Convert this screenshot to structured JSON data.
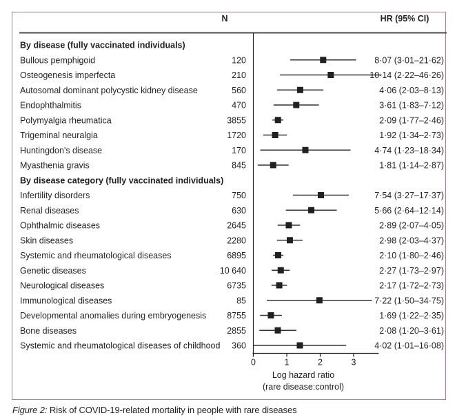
{
  "header": {
    "n_label": "N",
    "hr_label": "HR (95% CI)"
  },
  "caption": {
    "figure_label": "Figure 2:",
    "text": " Risk of COVID-19-related mortality in people with rare diseases"
  },
  "chart_data": {
    "type": "forest",
    "title": "Risk of COVID-19-related mortality in people with rare diseases",
    "xlabel": "Log hazard ratio",
    "xlabel_sub": "(rare disease:control)",
    "x_scale": "log hazard ratio (ln of HR)",
    "xlim": [
      0,
      3.75
    ],
    "xticks": [
      0,
      1,
      2,
      3
    ],
    "xtick_labels": [
      "0",
      "1",
      "2",
      "3"
    ],
    "columns": [
      "N",
      "HR (95% CI)"
    ],
    "groups": [
      {
        "heading": "By disease (fully vaccinated individuals)",
        "rows": [
          {
            "label": "Bullous pemphigoid",
            "n": "120",
            "hr": 8.07,
            "lo": 3.01,
            "hi": 21.62,
            "hr_text": "8·07 (3·01–21·62)"
          },
          {
            "label": "Osteogenesis imperfecta",
            "n": "210",
            "hr": 10.14,
            "lo": 2.22,
            "hi": 46.26,
            "hr_text": "10·14 (2·22–46·26)"
          },
          {
            "label": "Autosomal dominant polycystic kidney disease",
            "n": "560",
            "hr": 4.06,
            "lo": 2.03,
            "hi": 8.13,
            "hr_text": "4·06 (2·03–8·13)"
          },
          {
            "label": "Endophthalmitis",
            "n": "470",
            "hr": 3.61,
            "lo": 1.83,
            "hi": 7.12,
            "hr_text": "3·61 (1·83–7·12)"
          },
          {
            "label": "Polymyalgia rheumatica",
            "n": "3855",
            "hr": 2.09,
            "lo": 1.77,
            "hi": 2.46,
            "hr_text": "2·09 (1·77–2·46)"
          },
          {
            "label": "Trigeminal neuralgia",
            "n": "1720",
            "hr": 1.92,
            "lo": 1.34,
            "hi": 2.73,
            "hr_text": "1·92 (1·34–2·73)"
          },
          {
            "label": "Huntingdon's disease",
            "n": "170",
            "hr": 4.74,
            "lo": 1.23,
            "hi": 18.34,
            "hr_text": "4·74 (1·23–18·34)"
          },
          {
            "label": "Myasthenia gravis",
            "n": "845",
            "hr": 1.81,
            "lo": 1.14,
            "hi": 2.87,
            "hr_text": "1·81 (1·14–2·87)"
          }
        ]
      },
      {
        "heading": "By disease category (fully vaccinated individuals)",
        "rows": [
          {
            "label": "Infertility disorders",
            "n": "750",
            "hr": 7.54,
            "lo": 3.27,
            "hi": 17.37,
            "hr_text": "7·54 (3·27–17·37)"
          },
          {
            "label": "Renal diseases",
            "n": "630",
            "hr": 5.66,
            "lo": 2.64,
            "hi": 12.14,
            "hr_text": "5·66 (2·64–12·14)"
          },
          {
            "label": "Ophthalmic diseases",
            "n": "2645",
            "hr": 2.89,
            "lo": 2.07,
            "hi": 4.05,
            "hr_text": "2·89 (2·07–4·05)"
          },
          {
            "label": "Skin diseases",
            "n": "2280",
            "hr": 2.98,
            "lo": 2.03,
            "hi": 4.37,
            "hr_text": "2·98 (2·03–4·37)"
          },
          {
            "label": "Systemic and rheumatological diseases",
            "n": "6895",
            "hr": 2.1,
            "lo": 1.8,
            "hi": 2.46,
            "hr_text": "2·10 (1·80–2·46)"
          },
          {
            "label": "Genetic diseases",
            "n": "10 640",
            "hr": 2.27,
            "lo": 1.73,
            "hi": 2.97,
            "hr_text": "2·27 (1·73–2·97)"
          },
          {
            "label": "Neurological diseases",
            "n": "6735",
            "hr": 2.17,
            "lo": 1.72,
            "hi": 2.73,
            "hr_text": "2·17 (1·72–2·73)"
          },
          {
            "label": "Immunological diseases",
            "n": "85",
            "hr": 7.22,
            "lo": 1.5,
            "hi": 34.75,
            "hr_text": "7·22 (1·50–34·75)"
          },
          {
            "label": "Developmental anomalies during embryogenesis",
            "n": "8755",
            "hr": 1.69,
            "lo": 1.22,
            "hi": 2.35,
            "hr_text": "1·69 (1·22–2·35)"
          },
          {
            "label": "Bone diseases",
            "n": "2855",
            "hr": 2.08,
            "lo": 1.2,
            "hi": 3.61,
            "hr_text": "2·08 (1·20–3·61)"
          },
          {
            "label": "Systemic and rheumatological diseases of childhood",
            "n": "360",
            "hr": 4.02,
            "lo": 1.01,
            "hi": 16.08,
            "hr_text": "4·02 (1·01–16·08)"
          }
        ]
      }
    ]
  }
}
